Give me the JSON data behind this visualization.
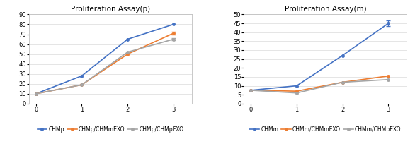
{
  "left": {
    "title": "Proliferation Assay(p)",
    "x": [
      0,
      1,
      2,
      3
    ],
    "series": [
      {
        "label": "CHMp",
        "color": "#4472C4",
        "values": [
          10,
          28,
          65,
          80
        ],
        "yerr": [
          0,
          0,
          0,
          0
        ]
      },
      {
        "label": "CHMp/CHMmEXO",
        "color": "#ED7D31",
        "values": [
          10,
          19,
          50,
          71
        ],
        "yerr": [
          0,
          0,
          0,
          1.2
        ]
      },
      {
        "label": "CHMp/CHMpEXO",
        "color": "#A5A5A5",
        "values": [
          10,
          19,
          52,
          65
        ],
        "yerr": [
          0,
          0,
          0,
          1.0
        ]
      }
    ],
    "ylim": [
      0,
      90
    ],
    "yticks": [
      0,
      10,
      20,
      30,
      40,
      50,
      60,
      70,
      80,
      90
    ],
    "xlim": [
      -0.15,
      3.4
    ],
    "xticks": [
      0,
      1,
      2,
      3
    ]
  },
  "right": {
    "title": "Proliferation Assay(m)",
    "x": [
      0,
      1,
      2,
      3
    ],
    "series": [
      {
        "label": "CHMm",
        "color": "#4472C4",
        "values": [
          7.5,
          10,
          27,
          45
        ],
        "yerr": [
          0,
          0,
          0,
          1.5
        ]
      },
      {
        "label": "CHMm/CHMmEXO",
        "color": "#ED7D31",
        "values": [
          7.5,
          7,
          12,
          15.5
        ],
        "yerr": [
          0,
          0,
          0,
          0
        ]
      },
      {
        "label": "CHMm/CHMpEXO",
        "color": "#A5A5A5",
        "values": [
          7.5,
          6,
          12,
          13.5
        ],
        "yerr": [
          0,
          0,
          0,
          0
        ]
      }
    ],
    "ylim": [
      0,
      50
    ],
    "yticks": [
      0,
      5,
      10,
      15,
      20,
      25,
      30,
      35,
      40,
      45,
      50
    ],
    "xlim": [
      -0.15,
      3.4
    ],
    "xticks": [
      0,
      1,
      2,
      3
    ]
  },
  "line_width": 1.2,
  "marker": "o",
  "marker_size": 2.5,
  "legend_fontsize": 5.5,
  "title_fontsize": 7.5,
  "tick_fontsize": 6,
  "bg_color": "#FFFFFF",
  "grid_color": "#E0E0E0",
  "outer_border_color": "#C0C0C0"
}
